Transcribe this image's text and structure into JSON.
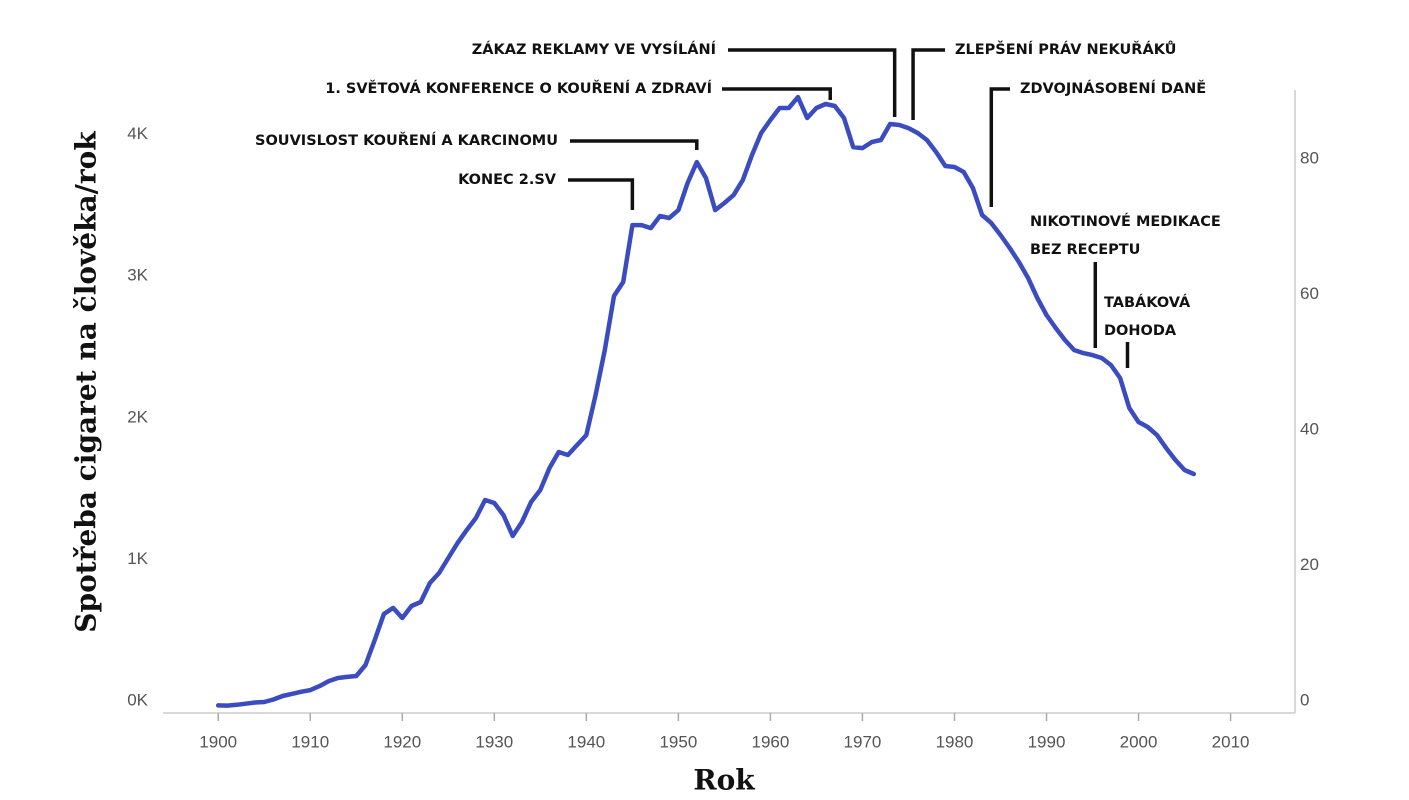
{
  "chart_data": {
    "type": "line",
    "xlabel": "Rok",
    "ylabel": "Spotřeba cigaret na člověka/rok",
    "x": [
      1900,
      1901,
      1902,
      1903,
      1904,
      1905,
      1906,
      1907,
      1908,
      1909,
      1910,
      1911,
      1912,
      1913,
      1914,
      1915,
      1916,
      1917,
      1918,
      1919,
      1920,
      1921,
      1922,
      1923,
      1924,
      1925,
      1926,
      1927,
      1928,
      1929,
      1930,
      1931,
      1932,
      1933,
      1934,
      1935,
      1936,
      1937,
      1938,
      1939,
      1940,
      1941,
      1942,
      1943,
      1944,
      1945,
      1946,
      1947,
      1948,
      1949,
      1950,
      1951,
      1952,
      1953,
      1954,
      1955,
      1956,
      1957,
      1958,
      1959,
      1960,
      1961,
      1962,
      1963,
      1964,
      1965,
      1966,
      1967,
      1968,
      1969,
      1970,
      1971,
      1972,
      1973,
      1974,
      1975,
      1976,
      1977,
      1978,
      1979,
      1980,
      1981,
      1982,
      1983,
      1984,
      1985,
      1986,
      1987,
      1988,
      1989,
      1990,
      1991,
      1992,
      1993,
      1994,
      1995,
      1996,
      1997,
      1998,
      1999,
      2000,
      2001,
      2002,
      2003,
      2004,
      2005,
      2006
    ],
    "series": [
      {
        "name": "Spotřeba",
        "color": "#3b4cc0",
        "values": [
          54,
          52,
          58,
          66,
          74,
          78,
          95,
          120,
          135,
          150,
          162,
          190,
          225,
          247,
          255,
          261,
          339,
          515,
          699,
          742,
          671,
          756,
          784,
          918,
          989,
          1095,
          1200,
          1292,
          1377,
          1504,
          1483,
          1398,
          1250,
          1349,
          1490,
          1575,
          1730,
          1843,
          1822,
          1893,
          1963,
          2246,
          2564,
          2945,
          3044,
          3446,
          3446,
          3425,
          3510,
          3496,
          3552,
          3743,
          3891,
          3778,
          3552,
          3602,
          3658,
          3764,
          3941,
          4096,
          4188,
          4273,
          4273,
          4350,
          4202,
          4273,
          4301,
          4287,
          4202,
          3997,
          3990,
          4032,
          4047,
          4160,
          4153,
          4131,
          4096,
          4047,
          3962,
          3863,
          3856,
          3821,
          3708,
          3517,
          3460,
          3376,
          3284,
          3185,
          3072,
          2931,
          2811,
          2719,
          2634,
          2564,
          2542,
          2528,
          2507,
          2458,
          2366,
          2154,
          2055,
          2020,
          1963,
          1871,
          1787,
          1716,
          1688
        ]
      }
    ],
    "xlim": [
      1894,
      2017
    ],
    "xticks": [
      1900,
      1910,
      1920,
      1930,
      1940,
      1950,
      1960,
      1970,
      1980,
      1990,
      2000,
      2010
    ],
    "ylim": [
      0,
      4400
    ],
    "yticks": [
      {
        "value": 0,
        "label": "0K"
      },
      {
        "value": 1000,
        "label": "1K"
      },
      {
        "value": 2000,
        "label": "2K"
      },
      {
        "value": 3000,
        "label": "3K"
      },
      {
        "value": 4000,
        "label": "4K"
      }
    ],
    "y2lim": [
      0,
      92
    ],
    "y2ticks": [
      0,
      20,
      40,
      60,
      80
    ],
    "annotations": [
      {
        "lines": [
          "KONEC 2.SV"
        ],
        "x": 1945
      },
      {
        "lines": [
          "SOUVISLOST KOUŘENÍ A KARCINOMU"
        ],
        "x": 1952
      },
      {
        "lines": [
          "1. SVĚTOVÁ KONFERENCE O KOUŘENÍ A ZDRAVÍ"
        ],
        "x": 1966.5
      },
      {
        "lines": [
          "ZÁKAZ REKLAMY VE VYSÍLÁNÍ"
        ],
        "x": 1973.5
      },
      {
        "lines": [
          "ZLEPŠENÍ PRÁV NEKUŘÁKŮ"
        ],
        "x": 1975.5
      },
      {
        "lines": [
          "ZDVOJNÁSOBENÍ DANĚ"
        ],
        "x": 1984
      },
      {
        "lines": [
          "NIKOTINOVÉ MEDIKACE",
          "BEZ RECEPTU"
        ],
        "x": 1995.3
      },
      {
        "lines": [
          "TABÁKOVÁ",
          "DOHODA"
        ],
        "x": 1998.8
      }
    ]
  }
}
